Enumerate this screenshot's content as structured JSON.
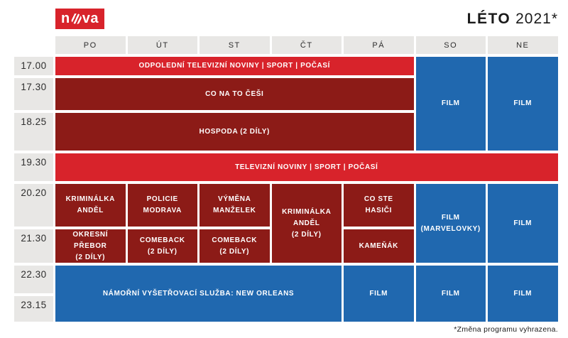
{
  "brand": {
    "logo_left": "n",
    "logo_right": "va",
    "logo_word": "nova"
  },
  "header": {
    "season_bold": "LÉTO",
    "season_year": "2021*"
  },
  "days": [
    "PO",
    "ÚT",
    "ST",
    "ČT",
    "PÁ",
    "SO",
    "NE"
  ],
  "times": [
    "17.00",
    "17.30",
    "18.25",
    "19.30",
    "20.20",
    "21.30",
    "22.30",
    "23.15"
  ],
  "schedule": {
    "cells": [
      {
        "id": "odpoledni-noviny",
        "text": "ODPOLEDNÍ TELEVIZNÍ NOVINY | SPORT | POČASÍ",
        "variant": "bright_red",
        "days": "PO–PÁ",
        "time": "17.00"
      },
      {
        "id": "co-na-to-cesi",
        "text": "CO NA TO ČEŠI",
        "variant": "dark_red",
        "days": "PO–PÁ",
        "time": "17.30"
      },
      {
        "id": "hospoda",
        "text": "HOSPODA (2 DÍLY)",
        "variant": "dark_red",
        "days": "PO–PÁ",
        "time": "18.25"
      },
      {
        "id": "film-so-early",
        "text": "FILM",
        "variant": "blue",
        "days": "SO",
        "time": "17.00–18.25"
      },
      {
        "id": "film-ne-early",
        "text": "FILM",
        "variant": "blue",
        "days": "NE",
        "time": "17.00–18.25"
      },
      {
        "id": "televizni-noviny",
        "text": "TELEVIZNÍ NOVINY | SPORT | POČASÍ",
        "variant": "bright_red",
        "days": "PO–NE",
        "time": "19.30"
      },
      {
        "id": "kriminalka-andel-po",
        "text": "KRIMINÁLKA\nANDĚL",
        "variant": "dark_red",
        "days": "PO",
        "time": "20.20"
      },
      {
        "id": "policie-modrava",
        "text": "POLICIE\nMODRAVA",
        "variant": "dark_red",
        "days": "ÚT",
        "time": "20.20"
      },
      {
        "id": "vymena-manzelek",
        "text": "VÝMĚNA\nMANŽELEK",
        "variant": "dark_red",
        "days": "ST",
        "time": "20.20"
      },
      {
        "id": "kriminalka-andel-ct",
        "text": "KRIMINÁLKA\nANDĚL\n(2 DÍLY)",
        "variant": "dark_red",
        "days": "ČT",
        "time": "20.20–21.30"
      },
      {
        "id": "co-ste-hasici",
        "text": "CO STE\nHASIČI",
        "variant": "dark_red",
        "days": "PÁ",
        "time": "20.20"
      },
      {
        "id": "film-marvelovky",
        "text": "FILM\n(MARVELOVKY)",
        "variant": "blue",
        "days": "SO",
        "time": "20.20–21.30"
      },
      {
        "id": "film-ne-prime",
        "text": "FILM",
        "variant": "blue",
        "days": "NE",
        "time": "20.20–21.30"
      },
      {
        "id": "okresni-prebor",
        "text": "OKRESNÍ PŘEBOR\n(2 DÍLY)",
        "variant": "dark_red",
        "days": "PO",
        "time": "21.30"
      },
      {
        "id": "comeback-ut",
        "text": "COMEBACK\n(2 DÍLY)",
        "variant": "dark_red",
        "days": "ÚT",
        "time": "21.30"
      },
      {
        "id": "comeback-st",
        "text": "COMEBACK\n(2 DÍLY)",
        "variant": "dark_red",
        "days": "ST",
        "time": "21.30"
      },
      {
        "id": "kamenak",
        "text": "KAMEŇÁK",
        "variant": "dark_red",
        "days": "PÁ",
        "time": "21.30"
      },
      {
        "id": "namorni-vysetrovaci-sluzba",
        "text": "NÁMOŘNÍ VYŠETŘOVACÍ SLUŽBA: NEW ORLEANS",
        "variant": "blue",
        "days": "PO–ČT",
        "time": "22.30–23.15"
      },
      {
        "id": "film-pa-late",
        "text": "FILM",
        "variant": "blue",
        "days": "PÁ",
        "time": "22.30–23.15"
      },
      {
        "id": "film-so-late",
        "text": "FILM",
        "variant": "blue",
        "days": "SO",
        "time": "22.30–23.15"
      },
      {
        "id": "film-ne-late",
        "text": "FILM",
        "variant": "blue",
        "days": "NE",
        "time": "22.30–23.15"
      }
    ]
  },
  "footer": {
    "note": "*Změna programu vyhrazena."
  },
  "colors": {
    "bright_red": "#d8232b",
    "dark_red": "#8c1b17",
    "blue": "#2068af",
    "cell_gray": "#e8e7e5",
    "text_dark": "#2e2e2e",
    "ink": "#1a1a1a"
  }
}
